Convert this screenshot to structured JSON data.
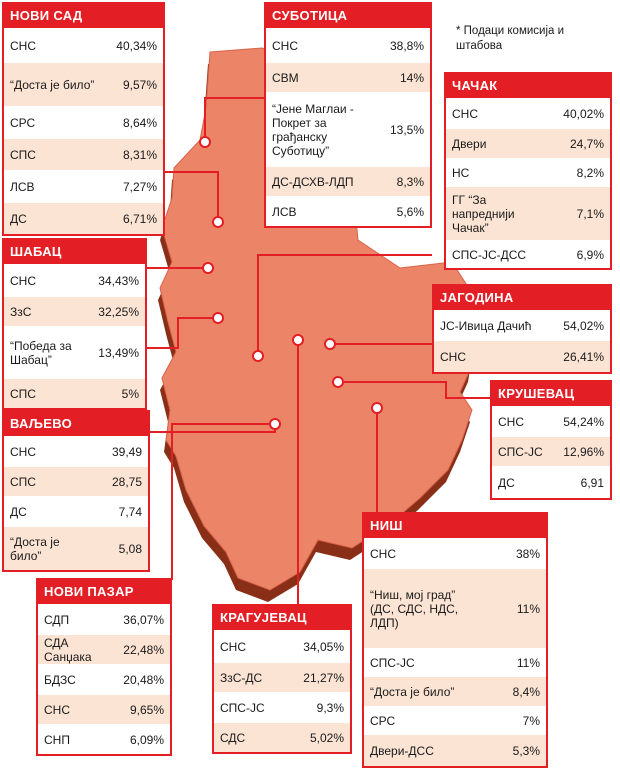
{
  "note": "* Подаци комисија и штабова",
  "colors": {
    "accent": "#e31e24",
    "map_fill": "#ec8468",
    "map_shadow": "#8a2f17",
    "row_alt": "#fbe4d4"
  },
  "cities": [
    {
      "id": "novi-sad",
      "name": "НОВИ САД",
      "rows": [
        {
          "party": "СНС",
          "pct": "40,34%"
        },
        {
          "party": "“Доста је било”",
          "pct": "9,57%"
        },
        {
          "party": "СРС",
          "pct": "8,64%"
        },
        {
          "party": "СПС",
          "pct": "8,31%"
        },
        {
          "party": "ЛСВ",
          "pct": "7,27%"
        },
        {
          "party": "ДС",
          "pct": "6,71%"
        }
      ]
    },
    {
      "id": "subotica",
      "name": "СУБОТИЦА",
      "rows": [
        {
          "party": "СНС",
          "pct": "38,8%"
        },
        {
          "party": "СВМ",
          "pct": "14%"
        },
        {
          "party": "“Јене Маглаи - Покрет за грађанску Суботицу”",
          "pct": "13,5%"
        },
        {
          "party": "ДС-ДСХВ-ЛДП",
          "pct": "8,3%"
        },
        {
          "party": "ЛСВ",
          "pct": "5,6%"
        }
      ]
    },
    {
      "id": "cacak",
      "name": "ЧАЧАК",
      "rows": [
        {
          "party": "СНС",
          "pct": "40,02%"
        },
        {
          "party": "Двери",
          "pct": "24,7%"
        },
        {
          "party": "НС",
          "pct": "8,2%"
        },
        {
          "party": "ГГ “За напреднији Чачак”",
          "pct": "7,1%"
        },
        {
          "party": "СПС-ЈС-ДСС",
          "pct": "6,9%"
        }
      ]
    },
    {
      "id": "sabac",
      "name": "ШАБАЦ",
      "rows": [
        {
          "party": "СНС",
          "pct": "34,43%"
        },
        {
          "party": "ЗзС",
          "pct": "32,25%"
        },
        {
          "party": "“Победа за Шабац”",
          "pct": "13,49%"
        },
        {
          "party": "СПС",
          "pct": "5%"
        }
      ]
    },
    {
      "id": "jagodina",
      "name": "ЈАГОДИНА",
      "rows": [
        {
          "party": "ЈС-Ивица Дачић",
          "pct": "54,02%"
        },
        {
          "party": "СНС",
          "pct": "26,41%"
        }
      ]
    },
    {
      "id": "krusevac",
      "name": "КРУШЕВАЦ",
      "rows": [
        {
          "party": "СНС",
          "pct": "54,24%"
        },
        {
          "party": "СПС-ЈС",
          "pct": "12,96%"
        },
        {
          "party": "ДС",
          "pct": "6,91"
        }
      ]
    },
    {
      "id": "valjevo",
      "name": "ВАЉЕВО",
      "rows": [
        {
          "party": "СНС",
          "pct": "39,49"
        },
        {
          "party": "СПС",
          "pct": "28,75"
        },
        {
          "party": "ДС",
          "pct": "7,74"
        },
        {
          "party": "“Доста је било”",
          "pct": "5,08"
        }
      ]
    },
    {
      "id": "nis",
      "name": "НИШ",
      "rows": [
        {
          "party": "СНС",
          "pct": "38%"
        },
        {
          "party": "“Ниш, мој град” (ДС, СДС, НДС, ЛДП)",
          "pct": "11%"
        },
        {
          "party": "СПС-ЈС",
          "pct": "11%"
        },
        {
          "party": "“Доста је било”",
          "pct": "8,4%"
        },
        {
          "party": "СРС",
          "pct": "7%"
        },
        {
          "party": "Двери-ДСС",
          "pct": "5,3%"
        }
      ]
    },
    {
      "id": "novi-pazar",
      "name": "НОВИ ПАЗАР",
      "rows": [
        {
          "party": "СДП",
          "pct": "36,07%"
        },
        {
          "party": "СДА Санџака",
          "pct": "22,48%"
        },
        {
          "party": "БДЗС",
          "pct": "20,48%"
        },
        {
          "party": "СНС",
          "pct": "9,65%"
        },
        {
          "party": "СНП",
          "pct": "6,09%"
        }
      ]
    },
    {
      "id": "kragujevac",
      "name": "КРАГУЈЕВАЦ",
      "rows": [
        {
          "party": "СНС",
          "pct": "34,05%"
        },
        {
          "party": "ЗзС-ДС",
          "pct": "21,27%"
        },
        {
          "party": "СПС-ЈС",
          "pct": "9,3%"
        },
        {
          "party": "СДС",
          "pct": "5,02%"
        }
      ]
    }
  ]
}
